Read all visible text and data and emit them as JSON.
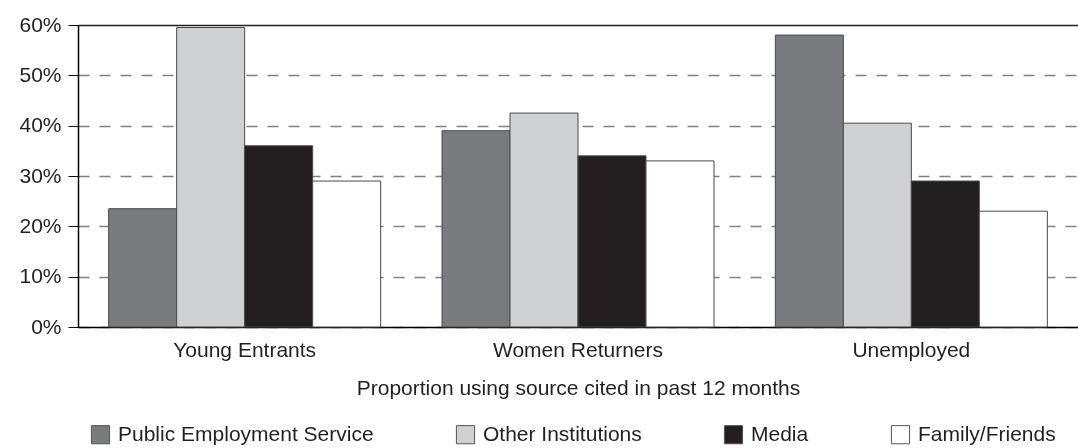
{
  "chart_data": {
    "type": "bar",
    "xlabel": "Proportion using source cited in past 12 months",
    "categories": [
      "Young Entrants",
      "Women Returners",
      "Unemployed"
    ],
    "series": [
      {
        "name": "Public Employment Service",
        "color": "#7a7b7f",
        "values": [
          23.5,
          39,
          58
        ]
      },
      {
        "name": "Other Institutions",
        "color": "#cfd0d2",
        "values": [
          59.5,
          42.5,
          40.5
        ]
      },
      {
        "name": "Media",
        "color": "#231f20",
        "values": [
          36,
          34,
          29
        ]
      },
      {
        "name": "Family/Friends",
        "color": "#ffffff",
        "values": [
          29,
          33,
          23
        ]
      }
    ],
    "ylim": [
      0,
      60
    ],
    "yticks": [
      {
        "value": 0,
        "label": "0%"
      },
      {
        "value": 10,
        "label": "10%"
      },
      {
        "value": 20,
        "label": "20%"
      },
      {
        "value": 30,
        "label": "30%"
      },
      {
        "value": 40,
        "label": "40%"
      },
      {
        "value": 50,
        "label": "50%"
      },
      {
        "value": 60,
        "label": "60%"
      }
    ],
    "grid": "y",
    "legend": "bottom"
  }
}
